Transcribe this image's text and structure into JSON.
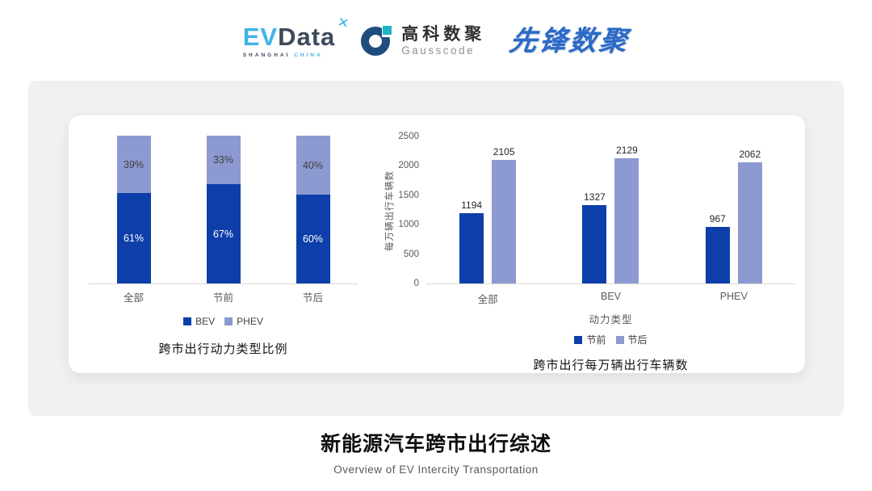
{
  "header": {
    "evdata": {
      "ev": "EV",
      "data": "Data",
      "sub_shanghai": "SHANGHAI",
      "sub_china": "CHINA",
      "pinwheel_glyph": "✕"
    },
    "gausscode": {
      "cn": "高科数聚",
      "en": "Gausscode"
    },
    "pioneer": {
      "text": "先锋数聚"
    }
  },
  "colors": {
    "series_dark_blue": "#0e3ea9",
    "series_light_purple": "#8d99d1",
    "panel_gray": "#f0f0f1",
    "axis_gray": "#d9d9d9",
    "brand_light_blue": "#3fb3e8",
    "brand_teal": "#1cb6c4"
  },
  "chart_data": [
    {
      "type": "bar",
      "variant": "stacked-percent",
      "title": "跨市出行动力类型比例",
      "categories": [
        "全部",
        "节前",
        "节后"
      ],
      "series": [
        {
          "name": "BEV",
          "values": [
            61,
            67,
            60
          ],
          "color": "#0e3ea9",
          "label_color": "#ffffff"
        },
        {
          "name": "PHEV",
          "values": [
            39,
            33,
            40
          ],
          "color": "#8d99d1",
          "label_color": "#3f3f3f"
        }
      ],
      "value_suffix": "%",
      "legend_position": "bottom",
      "grid": false,
      "ylim": [
        0,
        100
      ]
    },
    {
      "type": "bar",
      "variant": "grouped",
      "title": "跨市出行每万辆出行车辆数",
      "categories": [
        "全部",
        "BEV",
        "PHEV"
      ],
      "xlabel": "动力类型",
      "ylabel": "每万辆出行车辆数",
      "ylim": [
        0,
        2500
      ],
      "yticks": [
        0,
        500,
        1000,
        1500,
        2000,
        2500
      ],
      "series": [
        {
          "name": "节前",
          "values": [
            1194,
            1327,
            967
          ],
          "color": "#0e3ea9"
        },
        {
          "name": "节后",
          "values": [
            2105,
            2129,
            2062
          ],
          "color": "#8d99d1"
        }
      ],
      "legend_position": "bottom",
      "grid": false
    }
  ],
  "footer": {
    "title": "新能源汽车跨市出行综述",
    "subtitle": "Overview of EV Intercity Transportation"
  }
}
